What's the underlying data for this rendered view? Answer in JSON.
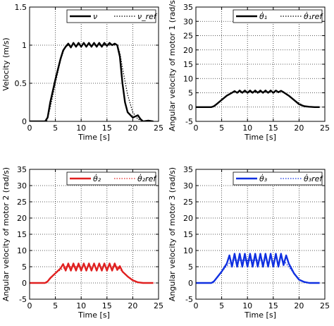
{
  "chart_data": [
    {
      "type": "line",
      "xlabel": "Time [s]",
      "ylabel": "Velocity  (m/s)",
      "xlim": [
        0,
        25
      ],
      "ylim": [
        0,
        1.5
      ],
      "xticks": [
        "0",
        "5",
        "10",
        "15",
        "20",
        "25"
      ],
      "yticks": [
        "0",
        "0.5",
        "1",
        "1.5"
      ],
      "grid": true,
      "legend_position": "top-right",
      "series": [
        {
          "name": "ν",
          "style": "solid",
          "color": "#000000",
          "x": [
            0,
            3,
            3.5,
            4,
            5,
            6,
            6.5,
            7,
            7.5,
            8,
            8.5,
            9,
            9.5,
            10,
            10.5,
            11,
            11.5,
            12,
            12.5,
            13,
            13.5,
            14,
            14.5,
            15,
            15.5,
            16,
            16.5,
            17,
            17.5,
            18,
            18.5,
            19,
            20,
            21,
            21.5,
            22,
            23,
            24
          ],
          "y": [
            0,
            0,
            0.05,
            0.25,
            0.55,
            0.82,
            0.93,
            0.98,
            1.02,
            0.97,
            1.03,
            0.98,
            1.03,
            0.98,
            1.03,
            0.98,
            1.03,
            0.98,
            1.03,
            0.98,
            1.03,
            0.98,
            1.03,
            0.99,
            1.03,
            1.0,
            1.02,
            1.0,
            0.85,
            0.5,
            0.25,
            0.12,
            0.05,
            0.08,
            0.03,
            0.0,
            0.01,
            0.0
          ]
        },
        {
          "name": "ν_ref",
          "style": "dotted",
          "color": "#000000",
          "x": [
            0,
            3.3,
            4,
            5,
            6,
            6.8,
            7.5,
            17,
            17.5,
            18,
            19,
            20,
            21,
            22,
            24
          ],
          "y": [
            0,
            0,
            0.18,
            0.5,
            0.8,
            0.97,
            1.0,
            1.0,
            0.9,
            0.7,
            0.35,
            0.12,
            0.03,
            0.0,
            0.0
          ]
        }
      ]
    },
    {
      "type": "line",
      "xlabel": "Time [s]",
      "ylabel": "Angular velocity of motor 1  (rad/s)",
      "xlim": [
        0,
        25
      ],
      "ylim": [
        -5,
        35
      ],
      "xticks": [
        "0",
        "5",
        "10",
        "15",
        "20",
        "25"
      ],
      "yticks": [
        "-5",
        "0",
        "5",
        "10",
        "15",
        "20",
        "25",
        "30",
        "35"
      ],
      "grid": true,
      "legend_position": "top-right",
      "series": [
        {
          "name": "θ̇₁",
          "style": "solid",
          "color": "#000000",
          "x": [
            0,
            3,
            3.5,
            4,
            5,
            6,
            7,
            7.5,
            8,
            8.5,
            9,
            9.5,
            10,
            10.5,
            11,
            11.5,
            12,
            12.5,
            13,
            13.5,
            14,
            14.5,
            15,
            15.5,
            16,
            16.5,
            17,
            18,
            19,
            20,
            21,
            22,
            23,
            24
          ],
          "y": [
            0,
            0,
            0.3,
            1.0,
            2.5,
            4.0,
            5.0,
            5.6,
            5.0,
            5.8,
            5.0,
            5.8,
            5.0,
            5.8,
            5.0,
            5.8,
            5.0,
            5.8,
            5.0,
            5.8,
            5.0,
            5.8,
            5.0,
            5.8,
            5.2,
            5.7,
            5.2,
            4.0,
            2.5,
            1.0,
            0.3,
            0.1,
            0.0,
            0.0
          ]
        },
        {
          "name": "θ̇₁ref",
          "style": "dotted",
          "color": "#000000",
          "x": [
            0,
            3.3,
            5,
            7,
            17,
            19,
            21,
            22,
            24
          ],
          "y": [
            0,
            0,
            2.5,
            5.3,
            5.3,
            2.5,
            0.3,
            0.0,
            0.0
          ]
        }
      ]
    },
    {
      "type": "line",
      "xlabel": "Time [s]",
      "ylabel": "Angular velocity of motor 2  (rad/s)",
      "xlim": [
        0,
        25
      ],
      "ylim": [
        -5,
        35
      ],
      "xticks": [
        "0",
        "5",
        "10",
        "15",
        "20",
        "25"
      ],
      "yticks": [
        "-5",
        "0",
        "5",
        "10",
        "15",
        "20",
        "25",
        "30",
        "35"
      ],
      "grid": true,
      "legend_position": "top-right",
      "series": [
        {
          "name": "θ̇₂",
          "style": "solid",
          "color": "#e02020",
          "x": [
            0,
            3,
            3.5,
            4,
            5,
            6,
            6.5,
            7,
            7.5,
            8,
            8.5,
            9,
            9.5,
            10,
            10.5,
            11,
            11.5,
            12,
            12.5,
            13,
            13.5,
            14,
            14.5,
            15,
            15.5,
            16,
            16.5,
            17,
            17.5,
            18,
            19,
            20,
            21,
            22,
            23,
            24
          ],
          "y": [
            0,
            0,
            0.5,
            1.5,
            3.0,
            4.5,
            5.8,
            3.8,
            6.0,
            3.8,
            6.0,
            3.8,
            6.0,
            3.8,
            6.0,
            3.8,
            6.0,
            3.8,
            6.0,
            3.8,
            6.0,
            3.8,
            6.0,
            3.8,
            6.0,
            3.8,
            6.0,
            4.0,
            5.2,
            3.5,
            2.0,
            0.8,
            0.2,
            0.0,
            0.0,
            0.0
          ]
        },
        {
          "name": "θ̇₂ref",
          "style": "dotted",
          "color": "#e02020",
          "x": [
            0,
            3.3,
            5,
            7,
            17,
            19,
            21,
            22,
            24
          ],
          "y": [
            0,
            0,
            3.0,
            5.0,
            5.0,
            2.0,
            0.2,
            0.0,
            0.0
          ]
        }
      ]
    },
    {
      "type": "line",
      "xlabel": "Time [s]",
      "ylabel": "Angular velocity of motor 3  (rad/s)",
      "xlim": [
        0,
        25
      ],
      "ylim": [
        -5,
        35
      ],
      "xticks": [
        "0",
        "5",
        "10",
        "15",
        "20",
        "25"
      ],
      "yticks": [
        "-5",
        "0",
        "5",
        "10",
        "15",
        "20",
        "25",
        "30",
        "35"
      ],
      "grid": true,
      "legend_position": "top-right",
      "series": [
        {
          "name": "θ̇₃",
          "style": "solid",
          "color": "#1030e0",
          "x": [
            0,
            3,
            3.5,
            4,
            5,
            6,
            6.5,
            7,
            7.5,
            8,
            8.5,
            9,
            9.5,
            10,
            10.5,
            11,
            11.5,
            12,
            12.5,
            13,
            13.5,
            14,
            14.5,
            15,
            15.5,
            16,
            16.5,
            17,
            17.5,
            18,
            19,
            20,
            21,
            22,
            23,
            24
          ],
          "y": [
            0,
            0,
            0.5,
            1.5,
            3.5,
            6.0,
            8.5,
            5.0,
            9.0,
            5.0,
            9.0,
            5.0,
            9.0,
            5.0,
            9.0,
            5.0,
            9.0,
            5.0,
            9.0,
            5.0,
            9.0,
            5.0,
            9.0,
            5.0,
            9.0,
            5.0,
            9.0,
            5.5,
            8.5,
            6.0,
            3.0,
            1.0,
            0.3,
            0.0,
            0.0,
            0.0
          ]
        },
        {
          "name": "θ̇₃ref",
          "style": "dotted",
          "color": "#1030e0",
          "x": [
            0,
            3.3,
            5,
            7,
            17,
            18.5,
            20,
            21.5,
            24
          ],
          "y": [
            0,
            0,
            3.5,
            7.0,
            7.0,
            4.0,
            1.0,
            0.0,
            0.0
          ]
        }
      ]
    }
  ]
}
